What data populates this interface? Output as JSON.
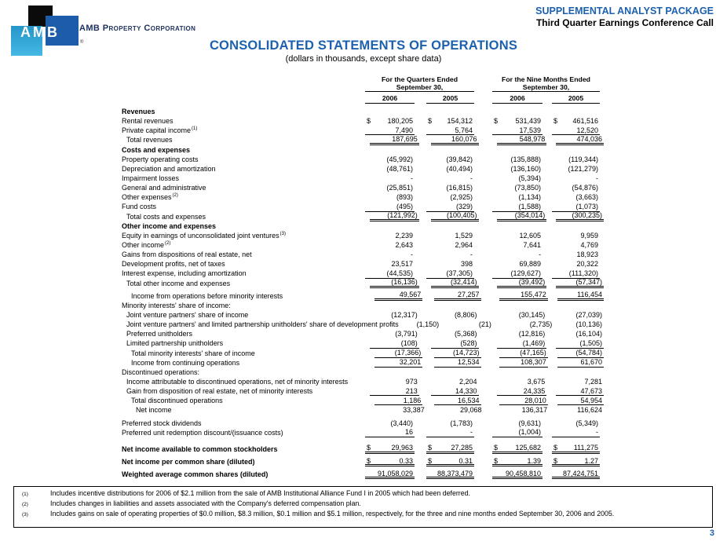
{
  "colors": {
    "accent_blue": "#1d61ae",
    "logo_dark_blue": "#1c5ca8",
    "logo_cyan": "#2da3d4",
    "logo_black": "#0b0b0b"
  },
  "header": {
    "logo_text": "AMB",
    "registered_mark": "®",
    "company_name": "AMB Property Corporation",
    "package_title": "SUPPLEMENTAL ANALYST PACKAGE",
    "package_subtitle": "Third Quarter Earnings Conference Call"
  },
  "title": "CONSOLIDATED STATEMENTS OF OPERATIONS",
  "subtitle": "(dollars in thousands, except share data)",
  "table": {
    "col_groups": [
      {
        "title": "For the Quarters Ended",
        "subtitle": "September 30,",
        "years": [
          "2006",
          "2005"
        ]
      },
      {
        "title": "For the Nine Months Ended",
        "subtitle": "September 30,",
        "years": [
          "2006",
          "2005"
        ]
      }
    ],
    "rows": [
      {
        "label": "Revenues",
        "bold": true
      },
      {
        "label": "Rental revenues",
        "dollar": true,
        "values": [
          "180,205",
          "154,312",
          "531,439",
          "461,516"
        ]
      },
      {
        "label": "Private capital income",
        "sup": "(1)",
        "values": [
          "7,490",
          "5,764",
          "17,539",
          "12,520"
        ],
        "rule": "bottom"
      },
      {
        "label": "Total revenues",
        "indent": 1,
        "values": [
          "187,695",
          "160,076",
          "548,978",
          "474,036"
        ],
        "rule": "double"
      },
      {
        "label": "Costs and expenses",
        "bold": true
      },
      {
        "label": "Property operating costs",
        "values": [
          "(45,992)",
          "(39,842)",
          "(135,888)",
          "(119,344)"
        ]
      },
      {
        "label": "Depreciation and amortization",
        "values": [
          "(48,761)",
          "(40,494)",
          "(136,160)",
          "(121,279)"
        ]
      },
      {
        "label": "Impairment losses",
        "values": [
          "-",
          "-",
          "(5,394)",
          "-"
        ]
      },
      {
        "label": "General and administrative",
        "values": [
          "(25,851)",
          "(16,815)",
          "(73,850)",
          "(54,876)"
        ]
      },
      {
        "label": "Other expenses",
        "sup": "(2)",
        "values": [
          "(893)",
          "(2,925)",
          "(1,134)",
          "(3,663)"
        ]
      },
      {
        "label": "Fund costs",
        "values": [
          "(495)",
          "(329)",
          "(1,588)",
          "(1,073)"
        ],
        "rule": "bottom"
      },
      {
        "label": "Total costs and expenses",
        "indent": 1,
        "values": [
          "(121,992)",
          "(100,405)",
          "(354,014)",
          "(300,235)"
        ],
        "rule": "double"
      },
      {
        "label": "Other income and expenses",
        "bold": true
      },
      {
        "label": "Equity in earnings of unconsolidated joint ventures",
        "sup": "(3)",
        "values": [
          "2,239",
          "1,529",
          "12,605",
          "9,959"
        ]
      },
      {
        "label": "Other income",
        "sup": "(2)",
        "values": [
          "2,643",
          "2,964",
          "7,641",
          "4,769"
        ]
      },
      {
        "label": "Gains from dispositions of real estate, net",
        "values": [
          "-",
          "-",
          "-",
          "18,923"
        ]
      },
      {
        "label": "Development profits, net of taxes",
        "values": [
          "23,517",
          "398",
          "69,889",
          "20,322"
        ]
      },
      {
        "label": "Interest expense, including amortization",
        "values": [
          "(44,535)",
          "(37,305)",
          "(129,627)",
          "(111,320)"
        ],
        "rule": "bottom"
      },
      {
        "label": "Total other income and expenses",
        "indent": 1,
        "values": [
          "(16,136)",
          "(32,414)",
          "(39,492)",
          "(57,347)"
        ],
        "rule": "double"
      },
      {
        "label": "Income from operations before minority interests",
        "indent": 2,
        "gap": 1,
        "values": [
          "49,567",
          "27,257",
          "155,472",
          "116,454"
        ],
        "rule": "double"
      },
      {
        "label": "Minority interests' share of income:"
      },
      {
        "label": "Joint venture partners' share of income",
        "indent": 1,
        "values": [
          "(12,317)",
          "(8,806)",
          "(30,145)",
          "(27,039)"
        ]
      },
      {
        "label": "Joint venture partners' and limited partnership unitholders' share of development profits",
        "indent": 1,
        "values": [
          "(1,150)",
          "(21)",
          "(2,735)",
          "(10,136)"
        ]
      },
      {
        "label": "Preferred unitholders",
        "indent": 1,
        "values": [
          "(3,791)",
          "(5,368)",
          "(12,816)",
          "(16,104)"
        ]
      },
      {
        "label": "Limited partnership unitholders",
        "indent": 1,
        "values": [
          "(108)",
          "(528)",
          "(1,469)",
          "(1,505)"
        ],
        "rule": "bottom"
      },
      {
        "label": "Total minority interests' share of income",
        "indent": 2,
        "values": [
          "(17,366)",
          "(14,723)",
          "(47,165)",
          "(54,784)"
        ],
        "rule": "bottom"
      },
      {
        "label": "Income from continuing operations",
        "indent": 2,
        "values": [
          "32,201",
          "12,534",
          "108,307",
          "61,670"
        ],
        "rule": "bottom"
      },
      {
        "label": "Discontinued operations:"
      },
      {
        "label": "Income attributable to discontinued operations, net of minority interests",
        "indent": 1,
        "values": [
          "973",
          "2,204",
          "3,675",
          "7,281"
        ]
      },
      {
        "label": "Gain from disposition of real estate, net of minority interests",
        "indent": 1,
        "values": [
          "213",
          "14,330",
          "24,335",
          "47,673"
        ],
        "rule": "bottom"
      },
      {
        "label": "Total discontinued operations",
        "indent": 2,
        "values": [
          "1,186",
          "16,534",
          "28,010",
          "54,954"
        ],
        "rule": "bottom"
      },
      {
        "label": "Net income",
        "indent": 3,
        "values": [
          "33,387",
          "29,068",
          "136,317",
          "116,624"
        ]
      },
      {
        "label": "Preferred stock dividends",
        "gap": 1,
        "values": [
          "(3,440)",
          "(1,783)",
          "(9,631)",
          "(5,349)"
        ]
      },
      {
        "label": "Preferred unit redemption discount/(issuance costs)",
        "values": [
          "16",
          "-",
          "(1,004)",
          "-"
        ],
        "rule": "bottom"
      },
      {
        "label": "Net income available to common stockholders",
        "bold": true,
        "dollar": true,
        "gap": 2,
        "values": [
          "29,963",
          "27,285",
          "125,682",
          "111,275"
        ],
        "rule": "double"
      },
      {
        "label": "Net income per common share (diluted)",
        "bold": true,
        "dollar": true,
        "gap": 1,
        "values": [
          "0.33",
          "0.31",
          "1.39",
          "1.27"
        ],
        "rule": "double"
      },
      {
        "label": "Weighted average common shares (diluted)",
        "bold": true,
        "gap": 1,
        "values": [
          "91,058,029",
          "88,373,479",
          "90,458,810",
          "87,424,751"
        ],
        "rule": "double"
      }
    ]
  },
  "footnotes": [
    {
      "mark": "(1)",
      "text": "Includes incentive distributions for 2006 of $2.1 million from the sale of AMB Institutional Alliance Fund I in 2005 which had been deferred."
    },
    {
      "mark": "(2)",
      "text": "Includes changes in liabilities and assets associated with the Company's deferred compensation plan."
    },
    {
      "mark": "(3)",
      "text": "Includes gains on sale of operating properties of $0.0 million, $8.3 million, $0.1 million and $5.1 million, respectively, for the three and nine months ended September 30, 2006 and 2005."
    }
  ],
  "page_number": "3"
}
